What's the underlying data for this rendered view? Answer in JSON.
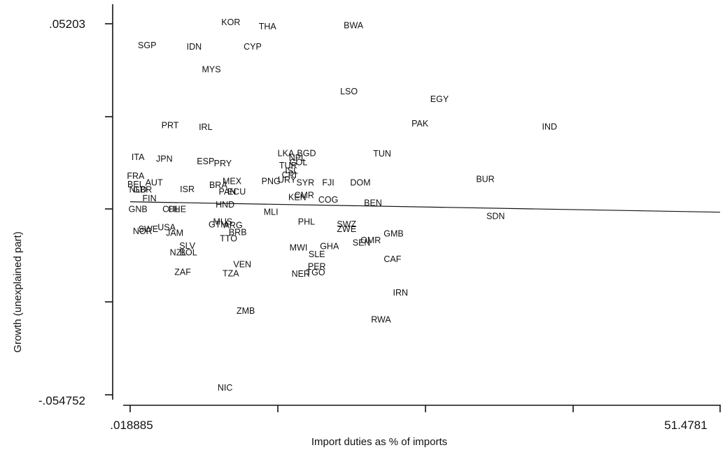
{
  "chart_data": {
    "type": "scatter",
    "title": "",
    "xlabel": "Import duties as % of imports",
    "ylabel": "Growth (unexplained part)",
    "xlim": [
      0.018885,
      51.4781
    ],
    "ylim": [
      -0.054752,
      0.05203
    ],
    "x_tick_labels": [
      ".018885",
      "51.4781"
    ],
    "y_tick_labels": [
      ".05203",
      "-.054752"
    ],
    "grid": false,
    "fit_line": {
      "x": [
        0.018885,
        51.4781
      ],
      "y": [
        0.0008,
        -0.0022
      ]
    },
    "points": [
      {
        "label": "KOR",
        "x": 8.8,
        "y": 0.0524
      },
      {
        "label": "THA",
        "x": 12.0,
        "y": 0.0512
      },
      {
        "label": "BWA",
        "x": 19.5,
        "y": 0.0515
      },
      {
        "label": "SGP",
        "x": 1.5,
        "y": 0.0458
      },
      {
        "label": "IDN",
        "x": 5.6,
        "y": 0.0454
      },
      {
        "label": "CYP",
        "x": 10.7,
        "y": 0.0454
      },
      {
        "label": "MYS",
        "x": 7.1,
        "y": 0.0389
      },
      {
        "label": "LSO",
        "x": 19.1,
        "y": 0.0325
      },
      {
        "label": "EGY",
        "x": 27.0,
        "y": 0.0303
      },
      {
        "label": "PAK",
        "x": 25.3,
        "y": 0.0233
      },
      {
        "label": "IND",
        "x": 36.6,
        "y": 0.0224
      },
      {
        "label": "PRT",
        "x": 3.5,
        "y": 0.0228
      },
      {
        "label": "IRL",
        "x": 6.6,
        "y": 0.0223
      },
      {
        "label": "LKA",
        "x": 13.6,
        "y": 0.0147
      },
      {
        "label": "BGD",
        "x": 15.4,
        "y": 0.0147
      },
      {
        "label": "NPL",
        "x": 14.6,
        "y": 0.0134
      },
      {
        "label": "TUN",
        "x": 22.0,
        "y": 0.0146
      },
      {
        "label": "ITA",
        "x": 0.7,
        "y": 0.0136
      },
      {
        "label": "JPN",
        "x": 3.0,
        "y": 0.0131
      },
      {
        "label": "ESP",
        "x": 6.6,
        "y": 0.0124
      },
      {
        "label": "PRY",
        "x": 8.1,
        "y": 0.0118
      },
      {
        "label": "COL",
        "x": 14.7,
        "y": 0.0121
      },
      {
        "label": "TUR",
        "x": 13.8,
        "y": 0.0112
      },
      {
        "label": "ISL",
        "x": 14.1,
        "y": 0.0097
      },
      {
        "label": "CRI",
        "x": 13.9,
        "y": 0.0085
      },
      {
        "label": "FRA",
        "x": 0.5,
        "y": 0.0082
      },
      {
        "label": "BEL",
        "x": 0.5,
        "y": 0.0058
      },
      {
        "label": "AUT",
        "x": 2.1,
        "y": 0.0063
      },
      {
        "label": "MEX",
        "x": 8.9,
        "y": 0.0067
      },
      {
        "label": "PNG",
        "x": 12.3,
        "y": 0.0067
      },
      {
        "label": "SYR",
        "x": 15.3,
        "y": 0.0063
      },
      {
        "label": "NLD",
        "x": 0.7,
        "y": 0.0043
      },
      {
        "label": "GBR",
        "x": 1.1,
        "y": 0.0043
      },
      {
        "label": "ISR",
        "x": 5.0,
        "y": 0.0044
      },
      {
        "label": "BRA",
        "x": 7.7,
        "y": 0.0056
      },
      {
        "label": "URY",
        "x": 13.7,
        "y": 0.0071
      },
      {
        "label": "FJI",
        "x": 17.3,
        "y": 0.0063
      },
      {
        "label": "DOM",
        "x": 20.1,
        "y": 0.0063
      },
      {
        "label": "BUR",
        "x": 31.0,
        "y": 0.0073
      },
      {
        "label": "PAN",
        "x": 8.5,
        "y": 0.0037
      },
      {
        "label": "ECU",
        "x": 9.3,
        "y": 0.0037
      },
      {
        "label": "KEN",
        "x": 14.6,
        "y": 0.0021
      },
      {
        "label": "CMR",
        "x": 15.2,
        "y": 0.0027
      },
      {
        "label": "GNB",
        "x": 0.7,
        "y": -0.0014
      },
      {
        "label": "FIN",
        "x": 1.7,
        "y": 0.0018
      },
      {
        "label": "CHL",
        "x": 3.6,
        "y": -0.0014
      },
      {
        "label": "CHE",
        "x": 4.1,
        "y": -0.0014
      },
      {
        "label": "HND",
        "x": 8.3,
        "y": -0.0001
      },
      {
        "label": "MLI",
        "x": 12.3,
        "y": -0.0022
      },
      {
        "label": "COG",
        "x": 17.3,
        "y": 0.0014
      },
      {
        "label": "BEN",
        "x": 21.2,
        "y": 0.0004
      },
      {
        "label": "SDN",
        "x": 31.9,
        "y": -0.0034
      },
      {
        "label": "NOR",
        "x": 1.1,
        "y": -0.0077
      },
      {
        "label": "SWE",
        "x": 1.6,
        "y": -0.0071
      },
      {
        "label": "USA",
        "x": 3.2,
        "y": -0.0066
      },
      {
        "label": "JAM",
        "x": 3.9,
        "y": -0.0082
      },
      {
        "label": "GTM",
        "x": 7.7,
        "y": -0.0058
      },
      {
        "label": "MUS",
        "x": 8.1,
        "y": -0.005
      },
      {
        "label": "ARG",
        "x": 9.0,
        "y": -0.006
      },
      {
        "label": "BRB",
        "x": 9.4,
        "y": -0.008
      },
      {
        "label": "PHL",
        "x": 15.4,
        "y": -0.005
      },
      {
        "label": "SWZ",
        "x": 18.9,
        "y": -0.0057
      },
      {
        "label": "ZWE",
        "x": 18.9,
        "y": -0.0071
      },
      {
        "label": "GMB",
        "x": 23.0,
        "y": -0.0084
      },
      {
        "label": "TTO",
        "x": 8.6,
        "y": -0.0098
      },
      {
        "label": "OMR",
        "x": 21.0,
        "y": -0.0103
      },
      {
        "label": "SEN",
        "x": 20.2,
        "y": -0.011
      },
      {
        "label": "SLV",
        "x": 5.0,
        "y": -0.0119
      },
      {
        "label": "MWI",
        "x": 14.7,
        "y": -0.0124
      },
      {
        "label": "GHA",
        "x": 17.4,
        "y": -0.012
      },
      {
        "label": "NZL",
        "x": 4.2,
        "y": -0.0138
      },
      {
        "label": "BOL",
        "x": 5.1,
        "y": -0.0138
      },
      {
        "label": "SLE",
        "x": 16.3,
        "y": -0.0143
      },
      {
        "label": "CAF",
        "x": 22.9,
        "y": -0.0157
      },
      {
        "label": "VEN",
        "x": 9.8,
        "y": -0.0172
      },
      {
        "label": "PER",
        "x": 16.3,
        "y": -0.0179
      },
      {
        "label": "ZAF",
        "x": 4.6,
        "y": -0.0195
      },
      {
        "label": "TZA",
        "x": 8.8,
        "y": -0.0199
      },
      {
        "label": "NER",
        "x": 14.9,
        "y": -0.02
      },
      {
        "label": "TGO",
        "x": 16.2,
        "y": -0.0196
      },
      {
        "label": "IRN",
        "x": 23.6,
        "y": -0.0254
      },
      {
        "label": "ZMB",
        "x": 10.1,
        "y": -0.0306
      },
      {
        "label": "RWA",
        "x": 21.9,
        "y": -0.0331
      },
      {
        "label": "NIC",
        "x": 8.3,
        "y": -0.0527
      }
    ]
  }
}
